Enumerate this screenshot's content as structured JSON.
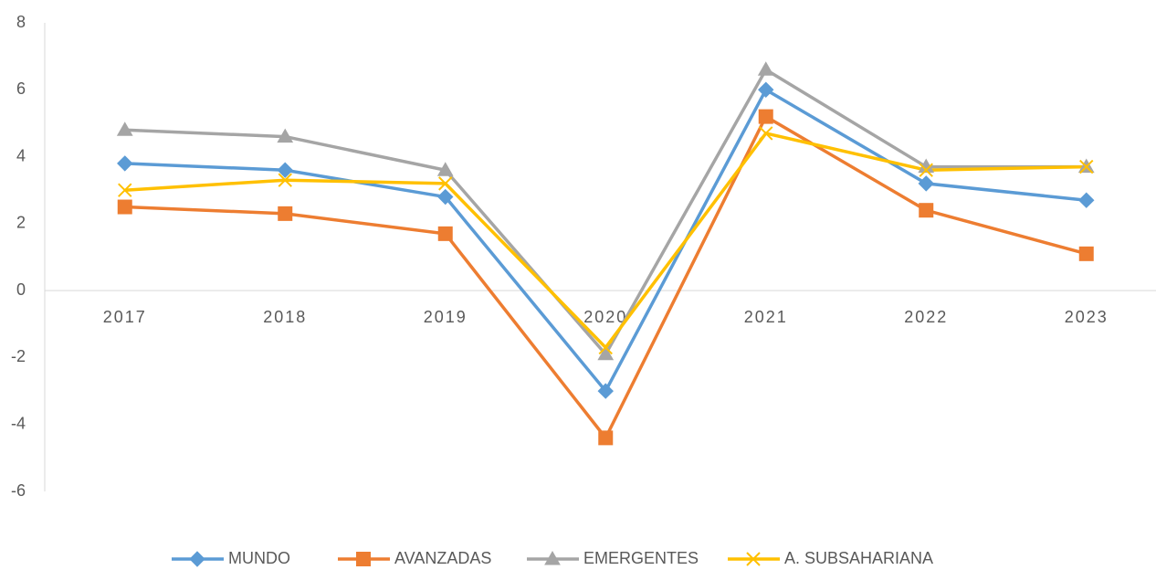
{
  "chart_data": {
    "type": "line",
    "categories": [
      "2017",
      "2018",
      "2019",
      "2020",
      "2021",
      "2022",
      "2023"
    ],
    "series": [
      {
        "name": "MUNDO",
        "color": "#5b9bd5",
        "marker": "diamond",
        "values": [
          3.8,
          3.6,
          2.8,
          -3.0,
          6.0,
          3.2,
          2.7
        ]
      },
      {
        "name": "AVANZADAS",
        "color": "#ed7d31",
        "marker": "square",
        "values": [
          2.5,
          2.3,
          1.7,
          -4.4,
          5.2,
          2.4,
          1.1
        ]
      },
      {
        "name": "EMERGENTES",
        "color": "#a5a5a5",
        "marker": "triangle",
        "values": [
          4.8,
          4.6,
          3.6,
          -1.9,
          6.6,
          3.7,
          3.7
        ]
      },
      {
        "name": "A. SUBSAHARIANA",
        "color": "#ffc000",
        "marker": "x",
        "values": [
          3.0,
          3.3,
          3.2,
          -1.7,
          4.7,
          3.6,
          3.7
        ]
      }
    ],
    "ylim": [
      -6,
      8
    ],
    "yticks": [
      -6,
      -4,
      -2,
      0,
      2,
      4,
      6,
      8
    ],
    "grid": false,
    "legend": "bottom"
  }
}
